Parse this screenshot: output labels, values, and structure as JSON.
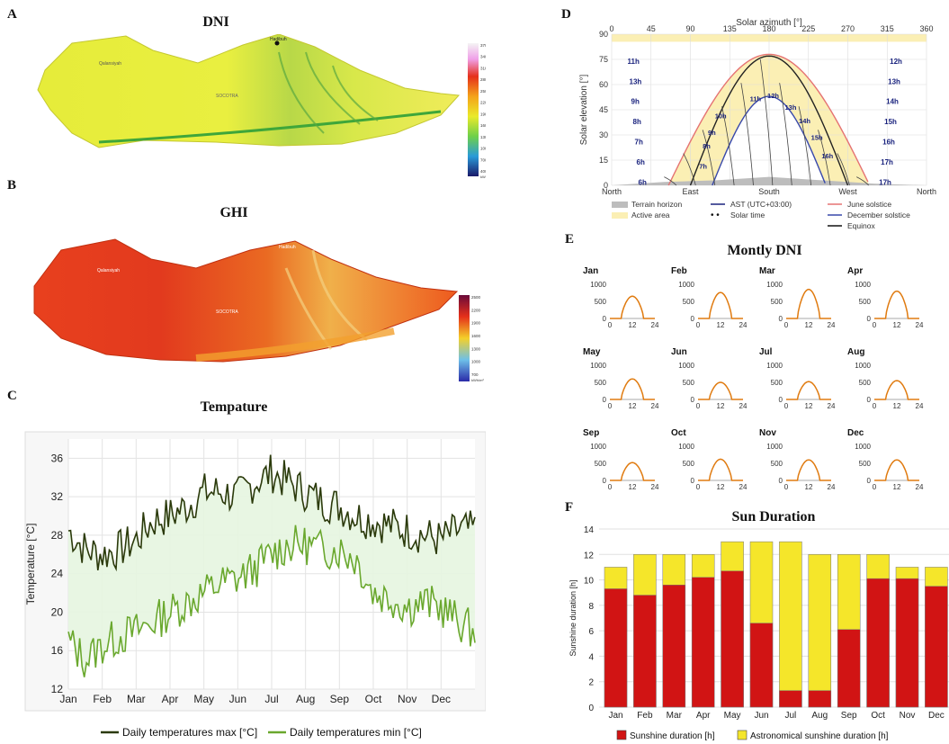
{
  "panels": {
    "a": {
      "letter": "A",
      "title": "DNI",
      "labels": [
        "Hadibuh",
        "Qalansiyah",
        "SOCOTRA"
      ],
      "legend_ticks": [
        "3700",
        "3400",
        "3100",
        "2800",
        "2500",
        "2200",
        "1900",
        "1600",
        "1300",
        "1000",
        "700",
        "400"
      ],
      "legend_unit": "kWh/m²"
    },
    "b": {
      "letter": "B",
      "title": "GHI",
      "labels": [
        "Hadibuh",
        "Qalansiyah",
        "SOCOTRA"
      ],
      "legend_ticks": [
        "2500",
        "2200",
        "1900",
        "1600",
        "1300",
        "1000",
        "700"
      ],
      "legend_unit": "kWh/m²"
    },
    "c": {
      "letter": "C",
      "title": "Tempature"
    },
    "d": {
      "letter": "D"
    },
    "e": {
      "letter": "E",
      "title": "Montly DNI"
    },
    "f": {
      "letter": "F",
      "title": "Sun Duration"
    }
  },
  "chart_data": [
    {
      "id": "temperature",
      "type": "line",
      "title": "Tempature",
      "ylabel": "Temperature [°C]",
      "ylim": [
        12,
        38
      ],
      "yticks": [
        12,
        16,
        20,
        24,
        28,
        32,
        36
      ],
      "xticks": [
        "Jan",
        "Feb",
        "Mar",
        "Apr",
        "May",
        "Jun",
        "Jul",
        "Aug",
        "Sep",
        "Oct",
        "Nov",
        "Dec"
      ],
      "grid": true,
      "legend": "bottom",
      "series": [
        {
          "name": "Daily temperatures max [°C]",
          "color": "#2b3a0b",
          "values": [
            28.5,
            26.5,
            26,
            26.5,
            27.5,
            29.5,
            30,
            31,
            32.5,
            32.5,
            32,
            33.5,
            34.5,
            33.5,
            32.5,
            31.5,
            31,
            30,
            29.5,
            29,
            28.5,
            28,
            27.5,
            28.5,
            28.5
          ]
        },
        {
          "name": "Daily temperatures min [°C]",
          "color": "#6aa82e",
          "values": [
            17,
            15,
            16.5,
            17.5,
            18,
            19,
            20,
            21,
            22,
            23,
            23.5,
            24.5,
            26,
            27,
            27,
            26.5,
            26.5,
            25.5,
            22,
            21.5,
            20.5,
            21,
            20.5,
            19,
            18
          ]
        }
      ]
    },
    {
      "id": "sun-path",
      "type": "line",
      "title": "",
      "xlabel": "Solar azimuth [°]",
      "ylabel": "Solar elevation [°]",
      "xlim": [
        0,
        360
      ],
      "ylim": [
        0,
        90
      ],
      "xticks": [
        0,
        45,
        90,
        135,
        180,
        225,
        270,
        315,
        360
      ],
      "yticks": [
        0,
        15,
        30,
        45,
        60,
        75,
        90
      ],
      "compass": [
        "North",
        "East",
        "South",
        "West",
        "North"
      ],
      "hour_labels_left": [
        "11h",
        "13h",
        "9h",
        "8h",
        "7h",
        "6h",
        "6h"
      ],
      "hour_labels_right": [
        "12h",
        "13h",
        "14h",
        "15h",
        "16h",
        "17h",
        "17h"
      ],
      "hour_labels_mid": [
        "11h",
        "12h",
        "13h",
        "14h",
        "15h",
        "16h",
        "10h",
        "9h",
        "8h",
        "7h"
      ],
      "legend": [
        {
          "label": "Terrain horizon",
          "color": "#bdbdbd"
        },
        {
          "label": "Active area",
          "color": "#fbefb4"
        },
        {
          "label": "AST (UTC+03:00)",
          "color": "#1a237e"
        },
        {
          "label": "Solar time",
          "color": "#111111"
        },
        {
          "label": "June solstice",
          "color": "#e57373"
        },
        {
          "label": "December solstice",
          "color": "#3949ab"
        },
        {
          "label": "Equinox",
          "color": "#111111"
        }
      ],
      "series": [
        {
          "name": "June solstice",
          "peak_elevation": 78,
          "azimuth_range": [
            65,
            295
          ]
        },
        {
          "name": "Equinox",
          "peak_elevation": 77,
          "azimuth_range": [
            90,
            270
          ]
        },
        {
          "name": "December solstice",
          "peak_elevation": 53,
          "azimuth_range": [
            115,
            245
          ]
        }
      ]
    },
    {
      "id": "monthly-dni",
      "type": "line",
      "title": "Montly DNI",
      "yticks": [
        0,
        500,
        1000
      ],
      "xticks": [
        0,
        12,
        24
      ],
      "ylim": [
        0,
        1000
      ],
      "xlim": [
        0,
        24
      ],
      "months": [
        {
          "name": "Jan",
          "peak": 650
        },
        {
          "name": "Feb",
          "peak": 760
        },
        {
          "name": "Mar",
          "peak": 850
        },
        {
          "name": "Apr",
          "peak": 800
        },
        {
          "name": "May",
          "peak": 600
        },
        {
          "name": "Jun",
          "peak": 500
        },
        {
          "name": "Jul",
          "peak": 520
        },
        {
          "name": "Aug",
          "peak": 550
        },
        {
          "name": "Sep",
          "peak": 520
        },
        {
          "name": "Oct",
          "peak": 620
        },
        {
          "name": "Nov",
          "peak": 600
        },
        {
          "name": "Dec",
          "peak": 600
        }
      ]
    },
    {
      "id": "sun-duration",
      "type": "bar",
      "title": "Sun Duration",
      "ylabel": "Sunshine duration [h]",
      "ylim": [
        0,
        14
      ],
      "yticks": [
        0,
        2,
        4,
        6,
        8,
        10,
        12,
        14
      ],
      "categories": [
        "Jan",
        "Feb",
        "Mar",
        "Apr",
        "May",
        "Jun",
        "Jul",
        "Aug",
        "Sep",
        "Oct",
        "Nov",
        "Dec"
      ],
      "legend": "bottom",
      "series": [
        {
          "name": "Sunshine duration [h]",
          "color": "#d11414",
          "values": [
            9.3,
            8.8,
            9.6,
            10.2,
            10.7,
            6.6,
            1.3,
            1.3,
            6.1,
            10.1,
            10.1,
            9.5
          ]
        },
        {
          "name": "Astronomical sunshine duration [h]",
          "color": "#f5e62a",
          "values": [
            11,
            12,
            12,
            12,
            13,
            13,
            13,
            12,
            12,
            12,
            11,
            11
          ]
        }
      ]
    }
  ]
}
